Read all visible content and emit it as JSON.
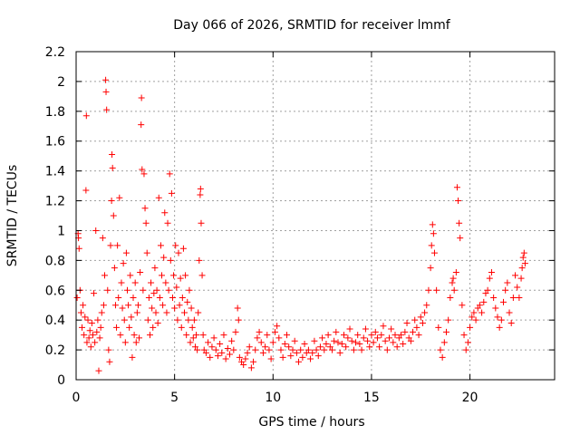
{
  "chart_data": {
    "type": "scatter",
    "title": "Day 066 of 2026, SRMTID for receiver lmmf",
    "xlabel": "GPS time / hours",
    "ylabel": "SRMTID / TECUs",
    "xlim": [
      0,
      24.3
    ],
    "ylim": [
      0,
      2.2
    ],
    "xticks": [
      0,
      5,
      10,
      15,
      20
    ],
    "xtick_labels": [
      "0",
      "5",
      "10",
      "15",
      "20"
    ],
    "yticks": [
      0,
      0.2,
      0.4,
      0.6,
      0.8,
      1,
      1.2,
      1.4,
      1.6,
      1.8,
      2,
      2.2
    ],
    "ytick_labels": [
      "0",
      "0.2",
      "0.4",
      "0.6",
      "0.8",
      "1",
      "1.2",
      "1.4",
      "1.6",
      "1.8",
      "2",
      "2.2"
    ],
    "grid": true,
    "marker": "plus",
    "color": "#ff0000",
    "series": [
      {
        "name": "SRMTID",
        "points": [
          [
            0.05,
            0.55
          ],
          [
            0.1,
            0.98
          ],
          [
            0.12,
            0.95
          ],
          [
            0.15,
            0.88
          ],
          [
            0.2,
            0.6
          ],
          [
            0.25,
            0.45
          ],
          [
            0.3,
            0.35
          ],
          [
            0.35,
            0.5
          ],
          [
            0.4,
            0.3
          ],
          [
            0.45,
            0.42
          ],
          [
            0.5,
            1.27
          ],
          [
            0.52,
            1.77
          ],
          [
            0.55,
            0.25
          ],
          [
            0.6,
            0.4
          ],
          [
            0.65,
            0.28
          ],
          [
            0.7,
            0.33
          ],
          [
            0.75,
            0.22
          ],
          [
            0.8,
            0.38
          ],
          [
            0.85,
            0.3
          ],
          [
            0.9,
            0.58
          ],
          [
            0.95,
            0.25
          ],
          [
            1.0,
            1.0
          ],
          [
            1.05,
            0.32
          ],
          [
            1.1,
            0.4
          ],
          [
            1.15,
            0.06
          ],
          [
            1.2,
            0.28
          ],
          [
            1.25,
            0.35
          ],
          [
            1.3,
            0.45
          ],
          [
            1.35,
            0.95
          ],
          [
            1.4,
            0.5
          ],
          [
            1.45,
            0.7
          ],
          [
            1.5,
            2.01
          ],
          [
            1.52,
            1.93
          ],
          [
            1.55,
            1.81
          ],
          [
            1.6,
            0.6
          ],
          [
            1.65,
            0.2
          ],
          [
            1.7,
            0.12
          ],
          [
            1.75,
            0.9
          ],
          [
            1.8,
            1.2
          ],
          [
            1.82,
            1.51
          ],
          [
            1.85,
            1.42
          ],
          [
            1.9,
            1.1
          ],
          [
            1.95,
            0.75
          ],
          [
            2.0,
            0.5
          ],
          [
            2.05,
            0.35
          ],
          [
            2.1,
            0.9
          ],
          [
            2.15,
            0.55
          ],
          [
            2.2,
            1.22
          ],
          [
            2.25,
            0.3
          ],
          [
            2.3,
            0.65
          ],
          [
            2.35,
            0.48
          ],
          [
            2.4,
            0.78
          ],
          [
            2.45,
            0.4
          ],
          [
            2.5,
            0.25
          ],
          [
            2.55,
            0.85
          ],
          [
            2.6,
            0.6
          ],
          [
            2.65,
            0.5
          ],
          [
            2.7,
            0.35
          ],
          [
            2.75,
            0.7
          ],
          [
            2.8,
            0.42
          ],
          [
            2.85,
            0.15
          ],
          [
            2.9,
            0.55
          ],
          [
            2.95,
            0.3
          ],
          [
            3.0,
            0.65
          ],
          [
            3.05,
            0.25
          ],
          [
            3.1,
            0.45
          ],
          [
            3.15,
            0.5
          ],
          [
            3.2,
            0.28
          ],
          [
            3.25,
            0.72
          ],
          [
            3.3,
            1.71
          ],
          [
            3.32,
            1.89
          ],
          [
            3.35,
            1.41
          ],
          [
            3.4,
            0.6
          ],
          [
            3.45,
            1.38
          ],
          [
            3.5,
            1.15
          ],
          [
            3.55,
            1.05
          ],
          [
            3.6,
            0.85
          ],
          [
            3.65,
            0.4
          ],
          [
            3.7,
            0.55
          ],
          [
            3.75,
            0.3
          ],
          [
            3.8,
            0.65
          ],
          [
            3.85,
            0.48
          ],
          [
            3.9,
            0.35
          ],
          [
            3.95,
            0.58
          ],
          [
            4.0,
            0.75
          ],
          [
            4.05,
            0.45
          ],
          [
            4.1,
            0.6
          ],
          [
            4.15,
            0.38
          ],
          [
            4.2,
            1.22
          ],
          [
            4.25,
            0.55
          ],
          [
            4.3,
            0.9
          ],
          [
            4.35,
            0.7
          ],
          [
            4.4,
            0.5
          ],
          [
            4.45,
            0.82
          ],
          [
            4.5,
            1.12
          ],
          [
            4.55,
            0.65
          ],
          [
            4.6,
            0.45
          ],
          [
            4.65,
            1.05
          ],
          [
            4.7,
            0.6
          ],
          [
            4.75,
            1.38
          ],
          [
            4.8,
            0.8
          ],
          [
            4.85,
            1.25
          ],
          [
            4.9,
            0.55
          ],
          [
            4.95,
            0.7
          ],
          [
            5.0,
            0.48
          ],
          [
            5.05,
            0.9
          ],
          [
            5.1,
            0.62
          ],
          [
            5.15,
            0.4
          ],
          [
            5.2,
            0.85
          ],
          [
            5.25,
            0.5
          ],
          [
            5.3,
            0.68
          ],
          [
            5.35,
            0.35
          ],
          [
            5.4,
            0.55
          ],
          [
            5.45,
            0.88
          ],
          [
            5.5,
            0.45
          ],
          [
            5.55,
            0.7
          ],
          [
            5.6,
            0.3
          ],
          [
            5.65,
            0.52
          ],
          [
            5.7,
            0.4
          ],
          [
            5.75,
            0.6
          ],
          [
            5.8,
            0.25
          ],
          [
            5.85,
            0.48
          ],
          [
            5.9,
            0.35
          ],
          [
            5.95,
            0.28
          ],
          [
            6.0,
            0.4
          ],
          [
            6.05,
            0.22
          ],
          [
            6.1,
            0.3
          ],
          [
            6.15,
            0.2
          ],
          [
            6.2,
            0.45
          ],
          [
            6.25,
            0.8
          ],
          [
            6.3,
            1.24
          ],
          [
            6.32,
            1.28
          ],
          [
            6.35,
            1.05
          ],
          [
            6.4,
            0.7
          ],
          [
            6.45,
            0.3
          ],
          [
            6.5,
            0.2
          ],
          [
            6.6,
            0.18
          ],
          [
            6.7,
            0.25
          ],
          [
            6.8,
            0.15
          ],
          [
            6.9,
            0.22
          ],
          [
            7.0,
            0.28
          ],
          [
            7.1,
            0.2
          ],
          [
            7.2,
            0.16
          ],
          [
            7.3,
            0.24
          ],
          [
            7.4,
            0.18
          ],
          [
            7.5,
            0.3
          ],
          [
            7.6,
            0.14
          ],
          [
            7.7,
            0.21
          ],
          [
            7.8,
            0.17
          ],
          [
            7.9,
            0.26
          ],
          [
            8.0,
            0.2
          ],
          [
            8.1,
            0.32
          ],
          [
            8.2,
            0.48
          ],
          [
            8.25,
            0.4
          ],
          [
            8.3,
            0.15
          ],
          [
            8.4,
            0.12
          ],
          [
            8.5,
            0.1
          ],
          [
            8.6,
            0.14
          ],
          [
            8.7,
            0.18
          ],
          [
            8.8,
            0.22
          ],
          [
            8.9,
            0.08
          ],
          [
            9.0,
            0.12
          ],
          [
            9.1,
            0.2
          ],
          [
            9.2,
            0.28
          ],
          [
            9.3,
            0.32
          ],
          [
            9.4,
            0.25
          ],
          [
            9.5,
            0.18
          ],
          [
            9.6,
            0.22
          ],
          [
            9.7,
            0.3
          ],
          [
            9.8,
            0.2
          ],
          [
            9.9,
            0.14
          ],
          [
            10.0,
            0.25
          ],
          [
            10.1,
            0.32
          ],
          [
            10.2,
            0.36
          ],
          [
            10.3,
            0.28
          ],
          [
            10.4,
            0.2
          ],
          [
            10.5,
            0.15
          ],
          [
            10.6,
            0.24
          ],
          [
            10.7,
            0.3
          ],
          [
            10.8,
            0.22
          ],
          [
            10.9,
            0.16
          ],
          [
            11.0,
            0.2
          ],
          [
            11.1,
            0.26
          ],
          [
            11.2,
            0.18
          ],
          [
            11.3,
            0.12
          ],
          [
            11.4,
            0.2
          ],
          [
            11.5,
            0.15
          ],
          [
            11.6,
            0.24
          ],
          [
            11.7,
            0.18
          ],
          [
            11.8,
            0.2
          ],
          [
            11.9,
            0.14
          ],
          [
            12.0,
            0.18
          ],
          [
            12.1,
            0.26
          ],
          [
            12.2,
            0.2
          ],
          [
            12.3,
            0.16
          ],
          [
            12.4,
            0.22
          ],
          [
            12.5,
            0.28
          ],
          [
            12.6,
            0.2
          ],
          [
            12.7,
            0.24
          ],
          [
            12.8,
            0.3
          ],
          [
            12.9,
            0.22
          ],
          [
            13.0,
            0.2
          ],
          [
            13.1,
            0.26
          ],
          [
            13.2,
            0.32
          ],
          [
            13.3,
            0.25
          ],
          [
            13.4,
            0.18
          ],
          [
            13.5,
            0.24
          ],
          [
            13.6,
            0.3
          ],
          [
            13.7,
            0.22
          ],
          [
            13.8,
            0.28
          ],
          [
            13.9,
            0.34
          ],
          [
            14.0,
            0.26
          ],
          [
            14.1,
            0.2
          ],
          [
            14.2,
            0.25
          ],
          [
            14.3,
            0.3
          ],
          [
            14.4,
            0.24
          ],
          [
            14.5,
            0.2
          ],
          [
            14.6,
            0.28
          ],
          [
            14.7,
            0.34
          ],
          [
            14.8,
            0.26
          ],
          [
            14.9,
            0.22
          ],
          [
            15.0,
            0.3
          ],
          [
            15.1,
            0.25
          ],
          [
            15.2,
            0.32
          ],
          [
            15.3,
            0.28
          ],
          [
            15.4,
            0.22
          ],
          [
            15.5,
            0.3
          ],
          [
            15.6,
            0.36
          ],
          [
            15.7,
            0.26
          ],
          [
            15.8,
            0.2
          ],
          [
            15.9,
            0.28
          ],
          [
            16.0,
            0.34
          ],
          [
            16.1,
            0.25
          ],
          [
            16.2,
            0.3
          ],
          [
            16.3,
            0.22
          ],
          [
            16.4,
            0.28
          ],
          [
            16.5,
            0.3
          ],
          [
            16.6,
            0.24
          ],
          [
            16.7,
            0.32
          ],
          [
            16.8,
            0.38
          ],
          [
            16.9,
            0.28
          ],
          [
            17.0,
            0.26
          ],
          [
            17.1,
            0.32
          ],
          [
            17.2,
            0.4
          ],
          [
            17.3,
            0.35
          ],
          [
            17.4,
            0.3
          ],
          [
            17.5,
            0.42
          ],
          [
            17.6,
            0.38
          ],
          [
            17.7,
            0.45
          ],
          [
            17.8,
            0.5
          ],
          [
            17.9,
            0.6
          ],
          [
            18.0,
            0.75
          ],
          [
            18.05,
            0.9
          ],
          [
            18.1,
            1.04
          ],
          [
            18.15,
            0.98
          ],
          [
            18.2,
            0.85
          ],
          [
            18.3,
            0.6
          ],
          [
            18.4,
            0.35
          ],
          [
            18.5,
            0.2
          ],
          [
            18.6,
            0.15
          ],
          [
            18.7,
            0.25
          ],
          [
            18.8,
            0.32
          ],
          [
            18.9,
            0.4
          ],
          [
            19.0,
            0.55
          ],
          [
            19.1,
            0.65
          ],
          [
            19.15,
            0.68
          ],
          [
            19.2,
            0.6
          ],
          [
            19.3,
            0.72
          ],
          [
            19.35,
            1.29
          ],
          [
            19.4,
            1.2
          ],
          [
            19.45,
            1.05
          ],
          [
            19.5,
            0.95
          ],
          [
            19.6,
            0.5
          ],
          [
            19.7,
            0.3
          ],
          [
            19.8,
            0.2
          ],
          [
            19.9,
            0.25
          ],
          [
            20.0,
            0.35
          ],
          [
            20.1,
            0.42
          ],
          [
            20.2,
            0.45
          ],
          [
            20.3,
            0.4
          ],
          [
            20.4,
            0.48
          ],
          [
            20.5,
            0.5
          ],
          [
            20.6,
            0.45
          ],
          [
            20.7,
            0.52
          ],
          [
            20.8,
            0.58
          ],
          [
            20.9,
            0.6
          ],
          [
            21.0,
            0.68
          ],
          [
            21.1,
            0.72
          ],
          [
            21.2,
            0.55
          ],
          [
            21.3,
            0.48
          ],
          [
            21.4,
            0.42
          ],
          [
            21.5,
            0.35
          ],
          [
            21.6,
            0.4
          ],
          [
            21.7,
            0.52
          ],
          [
            21.8,
            0.6
          ],
          [
            21.9,
            0.65
          ],
          [
            22.0,
            0.45
          ],
          [
            22.1,
            0.38
          ],
          [
            22.2,
            0.55
          ],
          [
            22.3,
            0.7
          ],
          [
            22.4,
            0.62
          ],
          [
            22.5,
            0.55
          ],
          [
            22.6,
            0.68
          ],
          [
            22.65,
            0.75
          ],
          [
            22.7,
            0.82
          ],
          [
            22.75,
            0.85
          ],
          [
            22.8,
            0.78
          ]
        ]
      }
    ]
  }
}
